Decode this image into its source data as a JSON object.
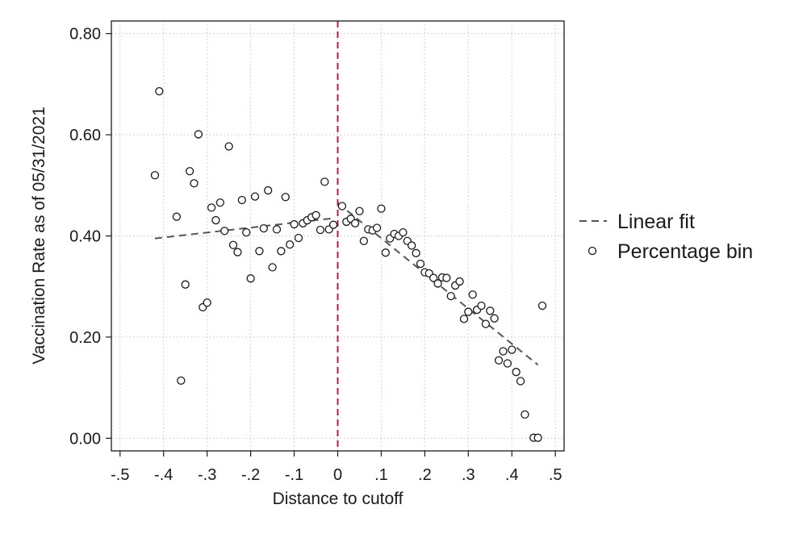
{
  "chart_data": {
    "type": "scatter",
    "title": "",
    "xlabel": "Distance to cutoff",
    "ylabel": "Vaccination Rate as of 05/31/2021",
    "xlim": [
      -0.52,
      0.52
    ],
    "ylim": [
      -0.025,
      0.825
    ],
    "x_ticks": [
      -0.5,
      -0.4,
      -0.3,
      -0.2,
      -0.1,
      0,
      0.1,
      0.2,
      0.3,
      0.4,
      0.5
    ],
    "x_tick_labels": [
      "-.5",
      "-.4",
      "-.3",
      "-.2",
      "-.1",
      "0",
      ".1",
      ".2",
      ".3",
      ".4",
      ".5"
    ],
    "y_ticks": [
      0,
      0.2,
      0.4,
      0.6,
      0.8
    ],
    "y_tick_labels": [
      "0.00",
      "0.20",
      "0.40",
      "0.60",
      "0.80"
    ],
    "grid": true,
    "cutoff": 0,
    "legend": {
      "placement": "right",
      "fit_label": "Linear fit",
      "bin_label": "Percentage bin"
    },
    "colors": {
      "cutoff_line": "#b5174f",
      "fit_line": "#555555",
      "markers": "#1a1a1a",
      "grid": "#c8c8c8"
    },
    "linear_fit": [
      {
        "x": [
          -0.42,
          -0.01
        ],
        "y": [
          0.395,
          0.435
        ]
      },
      {
        "x": [
          0.0,
          0.46
        ],
        "y": [
          0.465,
          0.145
        ]
      }
    ],
    "series": [
      {
        "name": "Percentage bin",
        "points": [
          [
            -0.42,
            0.52
          ],
          [
            -0.41,
            0.686
          ],
          [
            -0.37,
            0.438
          ],
          [
            -0.36,
            0.114
          ],
          [
            -0.35,
            0.304
          ],
          [
            -0.34,
            0.528
          ],
          [
            -0.33,
            0.504
          ],
          [
            -0.32,
            0.601
          ],
          [
            -0.31,
            0.259
          ],
          [
            -0.3,
            0.268
          ],
          [
            -0.29,
            0.456
          ],
          [
            -0.28,
            0.431
          ],
          [
            -0.27,
            0.466
          ],
          [
            -0.26,
            0.41
          ],
          [
            -0.25,
            0.577
          ],
          [
            -0.24,
            0.382
          ],
          [
            -0.23,
            0.368
          ],
          [
            -0.22,
            0.471
          ],
          [
            -0.21,
            0.407
          ],
          [
            -0.2,
            0.316
          ],
          [
            -0.19,
            0.478
          ],
          [
            -0.18,
            0.37
          ],
          [
            -0.17,
            0.415
          ],
          [
            -0.16,
            0.49
          ],
          [
            -0.15,
            0.338
          ],
          [
            -0.14,
            0.413
          ],
          [
            -0.13,
            0.37
          ],
          [
            -0.12,
            0.477
          ],
          [
            -0.11,
            0.383
          ],
          [
            -0.1,
            0.423
          ],
          [
            -0.09,
            0.396
          ],
          [
            -0.08,
            0.425
          ],
          [
            -0.07,
            0.431
          ],
          [
            -0.06,
            0.437
          ],
          [
            -0.05,
            0.441
          ],
          [
            -0.04,
            0.412
          ],
          [
            -0.03,
            0.507
          ],
          [
            -0.02,
            0.413
          ],
          [
            -0.01,
            0.422
          ],
          [
            0.01,
            0.459
          ],
          [
            0.02,
            0.428
          ],
          [
            0.03,
            0.434
          ],
          [
            0.04,
            0.425
          ],
          [
            0.05,
            0.449
          ],
          [
            0.06,
            0.39
          ],
          [
            0.07,
            0.413
          ],
          [
            0.08,
            0.411
          ],
          [
            0.09,
            0.416
          ],
          [
            0.1,
            0.454
          ],
          [
            0.11,
            0.367
          ],
          [
            0.12,
            0.395
          ],
          [
            0.13,
            0.404
          ],
          [
            0.14,
            0.4
          ],
          [
            0.15,
            0.407
          ],
          [
            0.16,
            0.39
          ],
          [
            0.17,
            0.381
          ],
          [
            0.18,
            0.366
          ],
          [
            0.19,
            0.345
          ],
          [
            0.2,
            0.328
          ],
          [
            0.21,
            0.326
          ],
          [
            0.22,
            0.317
          ],
          [
            0.23,
            0.306
          ],
          [
            0.24,
            0.318
          ],
          [
            0.25,
            0.317
          ],
          [
            0.26,
            0.281
          ],
          [
            0.27,
            0.302
          ],
          [
            0.28,
            0.31
          ],
          [
            0.29,
            0.236
          ],
          [
            0.3,
            0.25
          ],
          [
            0.31,
            0.284
          ],
          [
            0.32,
            0.254
          ],
          [
            0.33,
            0.262
          ],
          [
            0.34,
            0.226
          ],
          [
            0.35,
            0.252
          ],
          [
            0.36,
            0.237
          ],
          [
            0.37,
            0.154
          ],
          [
            0.38,
            0.172
          ],
          [
            0.39,
            0.148
          ],
          [
            0.4,
            0.175
          ],
          [
            0.41,
            0.131
          ],
          [
            0.42,
            0.113
          ],
          [
            0.43,
            0.047
          ],
          [
            0.45,
            0.001
          ],
          [
            0.46,
            0.001
          ],
          [
            0.47,
            0.262
          ]
        ]
      }
    ]
  }
}
